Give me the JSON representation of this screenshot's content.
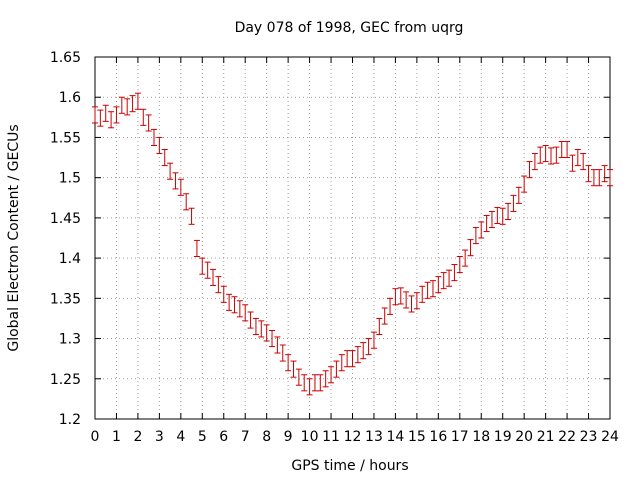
{
  "chart_data": {
    "type": "scatter",
    "title": "Day 078 of 1998, GEC from uqrg",
    "xlabel": "GPS time / hours",
    "ylabel": "Global Electron Content / GECUs",
    "xlim": [
      0,
      24
    ],
    "ylim": [
      1.2,
      1.65
    ],
    "x_ticks": [
      0,
      1,
      2,
      3,
      4,
      5,
      6,
      7,
      8,
      9,
      10,
      11,
      12,
      13,
      14,
      15,
      16,
      17,
      18,
      19,
      20,
      21,
      22,
      23,
      24
    ],
    "y_ticks": [
      1.2,
      1.25,
      1.3,
      1.35,
      1.4,
      1.45,
      1.5,
      1.55,
      1.6,
      1.65
    ],
    "y_tick_labels": [
      "1.2",
      "1.25",
      "1.3",
      "1.35",
      "1.4",
      "1.45",
      "1.5",
      "1.55",
      "1.6",
      "1.65"
    ],
    "grid": true,
    "error_bars": true,
    "series": [
      {
        "color": "#cc0000",
        "marker": "errorbar",
        "error": 0.01,
        "x": [
          0,
          0.25,
          0.5,
          0.75,
          1,
          1.25,
          1.5,
          1.75,
          2,
          2.25,
          2.5,
          2.75,
          3,
          3.25,
          3.5,
          3.75,
          4,
          4.25,
          4.5,
          4.75,
          5,
          5.25,
          5.5,
          5.75,
          6,
          6.25,
          6.5,
          6.75,
          7,
          7.25,
          7.5,
          7.75,
          8,
          8.25,
          8.5,
          8.75,
          9,
          9.25,
          9.5,
          9.75,
          10,
          10.25,
          10.5,
          10.75,
          11,
          11.25,
          11.5,
          11.75,
          12,
          12.25,
          12.5,
          12.75,
          13,
          13.25,
          13.5,
          13.75,
          14,
          14.25,
          14.5,
          14.75,
          15,
          15.25,
          15.5,
          15.75,
          16,
          16.25,
          16.5,
          16.75,
          17,
          17.25,
          17.5,
          17.75,
          18,
          18.25,
          18.5,
          18.75,
          19,
          19.25,
          19.5,
          19.75,
          20,
          20.25,
          20.5,
          20.75,
          21,
          21.25,
          21.5,
          21.75,
          22,
          22.25,
          22.5,
          22.75,
          23,
          23.25,
          23.5,
          23.75,
          24
        ],
        "y": [
          1.578,
          1.574,
          1.58,
          1.572,
          1.578,
          1.59,
          1.588,
          1.592,
          1.595,
          1.575,
          1.568,
          1.55,
          1.54,
          1.525,
          1.508,
          1.496,
          1.488,
          1.47,
          1.452,
          1.412,
          1.39,
          1.385,
          1.376,
          1.367,
          1.355,
          1.345,
          1.342,
          1.337,
          1.332,
          1.323,
          1.315,
          1.312,
          1.307,
          1.3,
          1.292,
          1.282,
          1.27,
          1.262,
          1.252,
          1.245,
          1.24,
          1.245,
          1.245,
          1.25,
          1.255,
          1.262,
          1.27,
          1.275,
          1.275,
          1.28,
          1.285,
          1.29,
          1.298,
          1.315,
          1.328,
          1.34,
          1.352,
          1.353,
          1.348,
          1.343,
          1.347,
          1.355,
          1.36,
          1.362,
          1.367,
          1.372,
          1.375,
          1.382,
          1.392,
          1.4,
          1.413,
          1.428,
          1.435,
          1.443,
          1.448,
          1.453,
          1.452,
          1.458,
          1.468,
          1.478,
          1.492,
          1.51,
          1.52,
          1.528,
          1.53,
          1.527,
          1.528,
          1.535,
          1.535,
          1.518,
          1.525,
          1.52,
          1.505,
          1.5,
          1.5,
          1.505,
          1.5
        ]
      }
    ]
  }
}
